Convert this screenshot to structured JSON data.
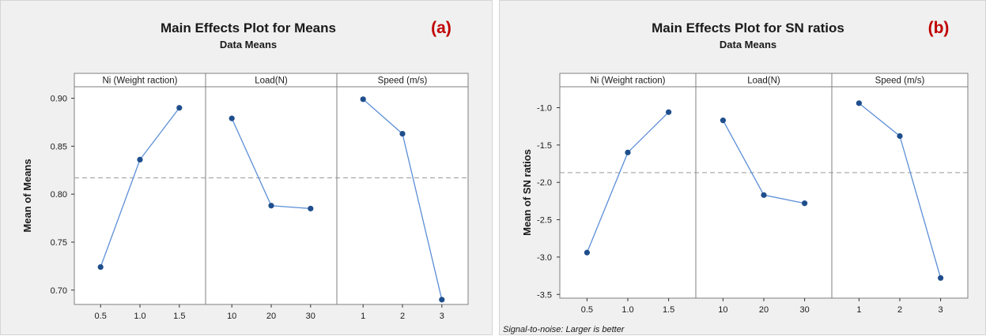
{
  "colors": {
    "line": "#5b8ed6",
    "marker": "#1f4e8c",
    "reference_line": "#9a9a9a",
    "panel_label": "#c00000",
    "frame": "#7f7f7f"
  },
  "chart_data": [
    {
      "type": "line",
      "title": "Main Effects Plot for Means",
      "subtitle": "Data Means",
      "panel_label": "(a)",
      "ylabel": "Mean of Means",
      "ylim": [
        0.685,
        0.912
      ],
      "yticks": [
        "0.70",
        "0.75",
        "0.80",
        "0.85",
        "0.90"
      ],
      "ytick_values": [
        0.7,
        0.75,
        0.8,
        0.85,
        0.9
      ],
      "reference_line": 0.817,
      "grid": false,
      "factors": [
        {
          "name": "Ni (Weight raction)",
          "levels": [
            "0.5",
            "1.0",
            "1.5"
          ],
          "values": [
            0.724,
            0.836,
            0.89
          ]
        },
        {
          "name": "Load(N)",
          "levels": [
            "10",
            "20",
            "30"
          ],
          "values": [
            0.879,
            0.788,
            0.785
          ]
        },
        {
          "name": "Speed (m/s)",
          "levels": [
            "1",
            "2",
            "3"
          ],
          "values": [
            0.899,
            0.863,
            0.69
          ]
        }
      ],
      "footnote": ""
    },
    {
      "type": "line",
      "title": "Main Effects Plot for SN ratios",
      "subtitle": "Data Means",
      "panel_label": "(b)",
      "ylabel": "Mean of SN ratios",
      "ylim": [
        -3.55,
        -0.72
      ],
      "yticks": [
        "-1.0",
        "-1.5",
        "-2.0",
        "-2.5",
        "-3.0",
        "-3.5"
      ],
      "ytick_values": [
        -1.0,
        -1.5,
        -2.0,
        -2.5,
        -3.0,
        -3.5
      ],
      "reference_line": -1.87,
      "grid": false,
      "factors": [
        {
          "name": "Ni (Weight raction)",
          "levels": [
            "0.5",
            "1.0",
            "1.5"
          ],
          "values": [
            -2.94,
            -1.6,
            -1.06
          ]
        },
        {
          "name": "Load(N)",
          "levels": [
            "10",
            "20",
            "30"
          ],
          "values": [
            -1.17,
            -2.17,
            -2.28
          ]
        },
        {
          "name": "Speed (m/s)",
          "levels": [
            "1",
            "2",
            "3"
          ],
          "values": [
            -0.94,
            -1.38,
            -3.28
          ]
        }
      ],
      "footnote": "Signal-to-noise: Larger is better"
    }
  ]
}
